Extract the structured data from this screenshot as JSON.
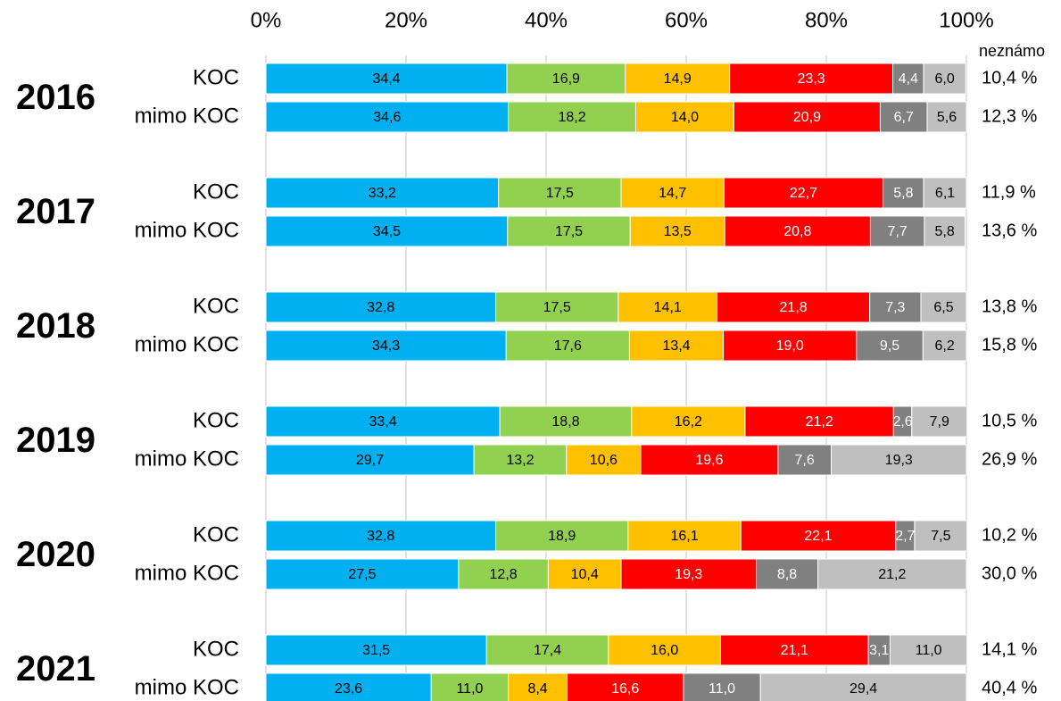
{
  "chart_data": {
    "type": "stacked_bar_horizontal",
    "groups": [
      "2016",
      "2017",
      "2018",
      "2019",
      "2020",
      "2021"
    ],
    "categories": [
      "KOC",
      "mimo KOC",
      "KOC",
      "mimo KOC",
      "KOC",
      "mimo KOC",
      "KOC",
      "mimo KOC",
      "KOC",
      "mimo KOC",
      "KOC",
      "mimo KOC"
    ],
    "xlim": [
      0,
      100
    ],
    "xticks": [
      {
        "value": 0,
        "label": "0%"
      },
      {
        "value": 20,
        "label": "20%"
      },
      {
        "value": 40,
        "label": "40%"
      },
      {
        "value": 60,
        "label": "60%"
      },
      {
        "value": 80,
        "label": "80%"
      },
      {
        "value": 100,
        "label": "100%"
      }
    ],
    "grid": true,
    "series": [
      {
        "color": "#00b0f0",
        "label_color": "#000000",
        "values": [
          34.4,
          34.6,
          33.2,
          34.5,
          32.8,
          34.3,
          33.4,
          29.7,
          32.8,
          27.5,
          31.5,
          23.6
        ],
        "value_labels": [
          "34,4",
          "34,6",
          "33,2",
          "34,5",
          "32,8",
          "34,3",
          "33,4",
          "29,7",
          "32,8",
          "27,5",
          "31,5",
          "23,6"
        ]
      },
      {
        "color": "#92d050",
        "label_color": "#000000",
        "values": [
          16.9,
          18.2,
          17.5,
          17.5,
          17.5,
          17.6,
          18.8,
          13.2,
          18.9,
          12.8,
          17.4,
          11.0
        ],
        "value_labels": [
          "16,9",
          "18,2",
          "17,5",
          "17,5",
          "17,5",
          "17,6",
          "18,8",
          "13,2",
          "18,9",
          "12,8",
          "17,4",
          "11,0"
        ]
      },
      {
        "color": "#ffc000",
        "label_color": "#000000",
        "values": [
          14.9,
          14.0,
          14.7,
          13.5,
          14.1,
          13.4,
          16.2,
          10.6,
          16.1,
          10.4,
          16.0,
          8.4
        ],
        "value_labels": [
          "14,9",
          "14,0",
          "14,7",
          "13,5",
          "14,1",
          "13,4",
          "16,2",
          "10,6",
          "16,1",
          "10,4",
          "16,0",
          "8,4"
        ]
      },
      {
        "color": "#ff0000",
        "label_color": "#ffffff",
        "values": [
          23.3,
          20.9,
          22.7,
          20.8,
          21.8,
          19.0,
          21.2,
          19.6,
          22.1,
          19.3,
          21.1,
          16.6
        ],
        "value_labels": [
          "23,3",
          "20,9",
          "22,7",
          "20,8",
          "21,8",
          "19,0",
          "21,2",
          "19,6",
          "22,1",
          "19,3",
          "21,1",
          "16,6"
        ]
      },
      {
        "color": "#808080",
        "label_color": "#ffffff",
        "values": [
          4.4,
          6.7,
          5.8,
          7.7,
          7.3,
          9.5,
          2.6,
          7.6,
          2.7,
          8.8,
          3.1,
          11.0
        ],
        "value_labels": [
          "4,4",
          "6,7",
          "5,8",
          "7,7",
          "7,3",
          "9,5",
          "2,6",
          "7,6",
          "2,7",
          "8,8",
          "3,1",
          "11,0"
        ]
      },
      {
        "color": "#bfbfbf",
        "label_color": "#000000",
        "values": [
          6.0,
          5.6,
          6.1,
          5.8,
          6.5,
          6.2,
          7.9,
          19.3,
          7.5,
          21.2,
          11.0,
          29.4
        ],
        "value_labels": [
          "6,0",
          "5,6",
          "6,1",
          "5,8",
          "6,5",
          "6,2",
          "7,9",
          "19,3",
          "7,5",
          "21,2",
          "11,0",
          "29,4"
        ]
      }
    ],
    "unknown": {
      "title": "neznámo",
      "values": [
        10.4,
        12.3,
        11.9,
        13.6,
        13.8,
        15.8,
        10.5,
        26.9,
        10.2,
        30.0,
        14.1,
        40.4
      ],
      "value_labels": [
        "10,4 %",
        "12,3 %",
        "11,9 %",
        "13,6 %",
        "13,8 %",
        "15,8 %",
        "10,5 %",
        "26,9 %",
        "10,2 %",
        "30,0 %",
        "14,1 %",
        "40,4 %"
      ]
    }
  }
}
